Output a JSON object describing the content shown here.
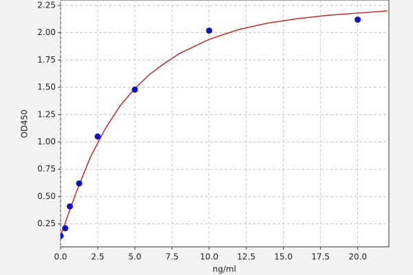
{
  "chart_data": {
    "type": "scatter",
    "x_label": "ng/ml",
    "y_label": "OD450",
    "xlim": [
      0,
      22.1
    ],
    "ylim": [
      0.04,
      2.3
    ],
    "xticks": [
      {
        "value": 0,
        "label": "0.0"
      },
      2.5,
      {
        "value": 5,
        "label": "5.0"
      },
      7.5,
      {
        "value": 10,
        "label": "10.0"
      },
      12.5,
      {
        "value": 15,
        "label": "15.0"
      },
      17.5,
      {
        "value": 20,
        "label": "20.0"
      }
    ],
    "yticks": [
      0.25,
      {
        "value": 0.5,
        "label": "0.50"
      },
      0.75,
      {
        "value": 1,
        "label": "1.00"
      },
      1.25,
      {
        "value": 1.5,
        "label": "1.50"
      },
      1.75,
      {
        "value": 2,
        "label": "2.00"
      },
      2.25
    ],
    "grid": true,
    "series": [
      {
        "type": "scatter",
        "color": "#1010c0",
        "x": [
          0,
          0.3125,
          0.625,
          1.25,
          2.5,
          5,
          10,
          20
        ],
        "values": [
          0.14,
          0.21,
          0.41,
          0.62,
          1.05,
          1.48,
          2.02,
          2.12
        ]
      },
      {
        "type": "line",
        "color": "#c0282a",
        "x": [
          0,
          0.5,
          1,
          2,
          3,
          4,
          5,
          6,
          7,
          8,
          10,
          12,
          14,
          16,
          18,
          20,
          22
        ],
        "values": [
          0.14,
          0.33,
          0.52,
          0.86,
          1.12,
          1.33,
          1.49,
          1.62,
          1.72,
          1.81,
          1.94,
          2.03,
          2.09,
          2.13,
          2.16,
          2.18,
          2.2
        ]
      }
    ]
  }
}
